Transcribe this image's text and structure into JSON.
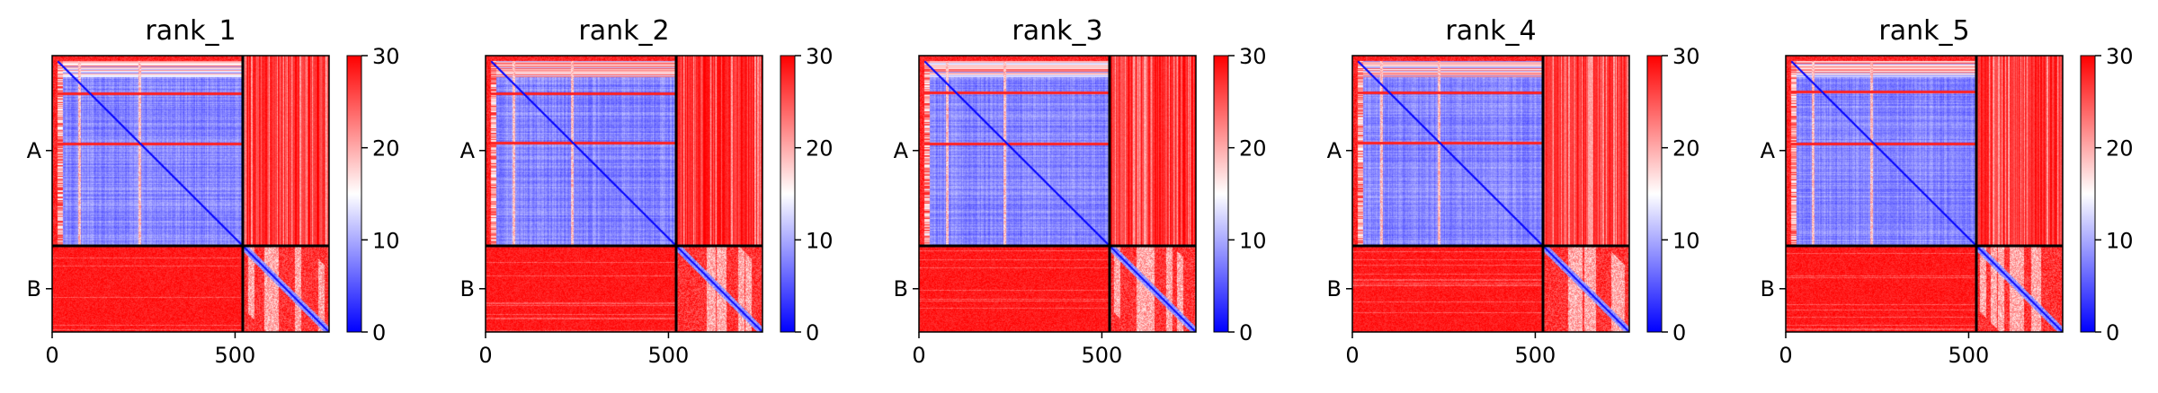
{
  "chart_data": {
    "type": "heatmap",
    "colormap": {
      "low": "#0000ff",
      "mid": "#ffffff",
      "high": "#ff0000"
    },
    "value_range": [
      0,
      30
    ],
    "colorbar_ticks": [
      "0",
      "10",
      "20",
      "30"
    ],
    "axis_range": [
      0,
      757
    ],
    "x_ticks": [
      {
        "value": 0,
        "label": "0"
      },
      {
        "value": 500,
        "label": "500"
      }
    ],
    "chain_boundary": 520,
    "chains": [
      {
        "label": "A",
        "start": 0,
        "end": 520
      },
      {
        "label": "B",
        "start": 520,
        "end": 757
      }
    ],
    "panels": [
      {
        "title": "rank_1"
      },
      {
        "title": "rank_2"
      },
      {
        "title": "rank_3"
      },
      {
        "title": "rank_4"
      },
      {
        "title": "rank_5"
      }
    ]
  }
}
